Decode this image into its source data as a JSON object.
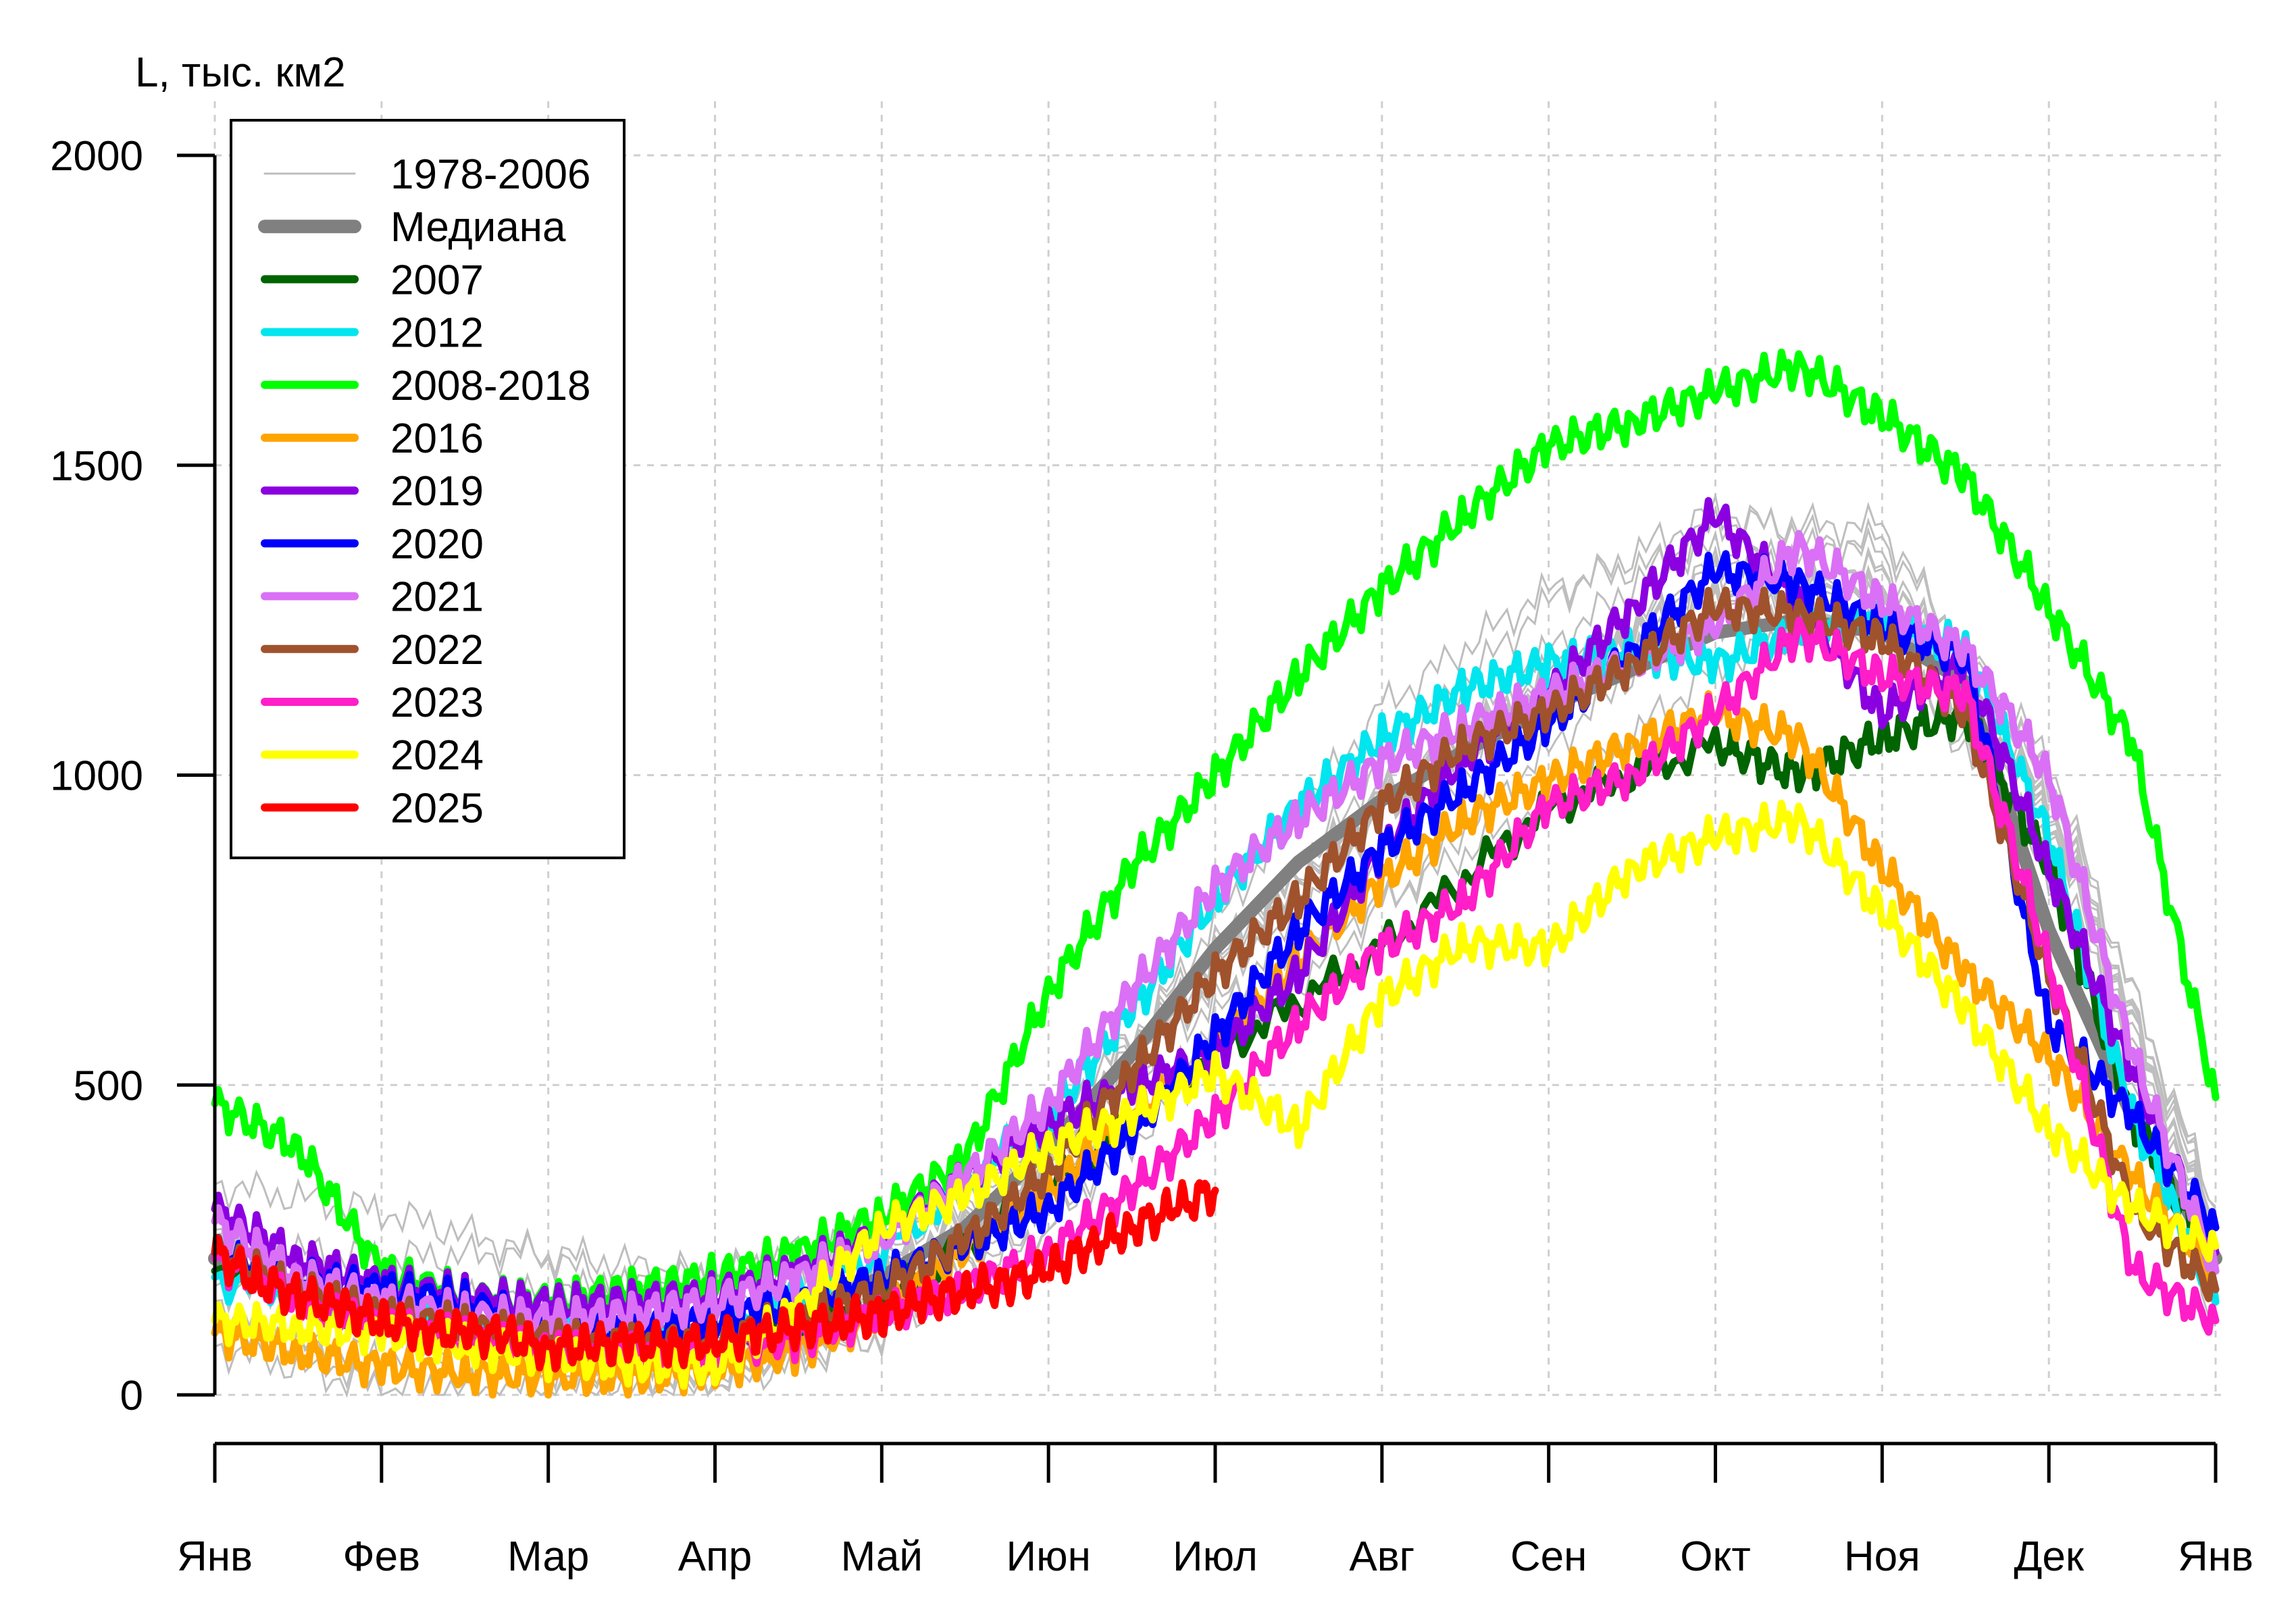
{
  "chart_data": {
    "type": "line",
    "ylabel": "L, тыс. км2",
    "ylim": [
      0,
      2000
    ],
    "y_ticks": [
      0,
      500,
      1000,
      1500,
      2000
    ],
    "x_ticks": [
      "Янв",
      "Фев",
      "Мар",
      "Апр",
      "Май",
      "Июн",
      "Июл",
      "Авг",
      "Сен",
      "Окт",
      "Ноя",
      "Дек",
      "Янв"
    ],
    "x_unit": "month",
    "grid": true,
    "legend_position": "top-left",
    "series": [
      {
        "name": "1978-2006",
        "color": "#bebebe",
        "style": "thin",
        "x": [
          0,
          1,
          2,
          3,
          4,
          5,
          6,
          7,
          8,
          9,
          10,
          11,
          12
        ],
        "values": [
          230,
          130,
          90,
          80,
          180,
          380,
          680,
          950,
          1150,
          1300,
          1300,
          950,
          250
        ]
      },
      {
        "name": "Медиана",
        "color": "#808080",
        "style": "median",
        "x": [
          0,
          0.5,
          1,
          1.5,
          2,
          2.5,
          3,
          3.5,
          4,
          4.5,
          5,
          5.5,
          6,
          6.5,
          7,
          7.5,
          8,
          8.5,
          9,
          9.5,
          10,
          10.5,
          11,
          11.5,
          12
        ],
        "values": [
          220,
          170,
          140,
          120,
          105,
          100,
          105,
          130,
          190,
          270,
          400,
          550,
          720,
          860,
          960,
          1040,
          1110,
          1170,
          1230,
          1250,
          1230,
          1150,
          750,
          450,
          220
        ]
      },
      {
        "name": "2007",
        "color": "#006400",
        "style": "thick",
        "x": [
          0,
          1,
          2,
          3,
          4,
          5,
          6,
          7,
          8,
          9,
          9.5,
          10,
          10.5,
          11,
          11.5,
          12
        ],
        "values": [
          200,
          120,
          90,
          80,
          150,
          330,
          550,
          720,
          950,
          1050,
          1000,
          1060,
          1100,
          850,
          450,
          200
        ]
      },
      {
        "name": "2012",
        "color": "#00e5ee",
        "style": "thick",
        "x": [
          0,
          1,
          2,
          3,
          4,
          5,
          5.5,
          6,
          6.5,
          7,
          7.5,
          8,
          8.5,
          9,
          9.5,
          10,
          10.5,
          11,
          11.5,
          12
        ],
        "values": [
          190,
          130,
          110,
          100,
          230,
          450,
          620,
          800,
          950,
          1060,
          1140,
          1180,
          1200,
          1180,
          1230,
          1250,
          1200,
          900,
          450,
          150
        ]
      },
      {
        "name": "2008-2018",
        "color": "#00ff00",
        "style": "thick",
        "x": [
          0,
          0.5,
          1,
          1.5,
          2,
          2.5,
          3,
          3.5,
          4,
          4.5,
          5,
          5.5,
          6,
          6.5,
          7,
          7.5,
          8,
          8.5,
          9,
          9.5,
          10,
          10.5,
          11,
          11.5,
          12
        ],
        "values": [
          470,
          400,
          200,
          160,
          150,
          170,
          190,
          230,
          290,
          380,
          650,
          850,
          1000,
          1160,
          1300,
          1420,
          1530,
          1570,
          1620,
          1660,
          1580,
          1480,
          1270,
          1050,
          480
        ]
      },
      {
        "name": "2016",
        "color": "#ffa500",
        "style": "thick",
        "x": [
          0,
          0.5,
          1,
          1.5,
          2,
          2.5,
          3,
          3.5,
          4,
          4.5,
          5,
          5.5,
          6,
          6.5,
          7,
          7.5,
          8,
          8.5,
          9,
          9.5,
          10,
          10.5,
          11,
          11.5,
          12
        ],
        "values": [
          100,
          70,
          45,
          35,
          30,
          30,
          40,
          70,
          130,
          230,
          330,
          450,
          560,
          700,
          830,
          930,
          990,
          1050,
          1100,
          1060,
          850,
          680,
          550,
          350,
          200
        ]
      },
      {
        "name": "2019",
        "color": "#8b00e0",
        "style": "thick",
        "x": [
          0,
          0.5,
          1,
          1.5,
          2,
          2.5,
          3,
          3.5,
          4,
          4.5,
          5,
          5.5,
          6,
          6.5,
          7,
          7.5,
          8,
          8.5,
          9,
          9.5,
          10,
          10.5,
          11,
          11.5,
          12
        ],
        "values": [
          300,
          220,
          180,
          160,
          145,
          150,
          160,
          200,
          260,
          350,
          440,
          500,
          550,
          680,
          880,
          1030,
          1130,
          1270,
          1420,
          1280,
          1100,
          1180,
          850,
          520,
          230
        ]
      },
      {
        "name": "2020",
        "color": "#0000ff",
        "style": "thick",
        "x": [
          0,
          0.5,
          1,
          1.5,
          2,
          2.5,
          3,
          3.5,
          4,
          4.5,
          5,
          5.5,
          6,
          6.5,
          7,
          7.5,
          8,
          8.5,
          9,
          9.5,
          10,
          10.5,
          11,
          11.5,
          12
        ],
        "values": [
          230,
          190,
          170,
          150,
          110,
          100,
          120,
          150,
          190,
          240,
          300,
          420,
          580,
          750,
          880,
          980,
          1080,
          1200,
          1330,
          1310,
          1240,
          1190,
          600,
          450,
          270
        ]
      },
      {
        "name": "2021",
        "color": "#da70f5",
        "style": "thick",
        "x": [
          0,
          0.5,
          1,
          1.5,
          2,
          2.5,
          3,
          3.5,
          4,
          4.5,
          5,
          5.5,
          6,
          6.5,
          7,
          7.5,
          8,
          8.5,
          9,
          9.5,
          10,
          10.5,
          11,
          11.5,
          12
        ],
        "values": [
          280,
          190,
          150,
          130,
          120,
          130,
          150,
          190,
          250,
          350,
          470,
          650,
          820,
          930,
          1020,
          1080,
          1130,
          1180,
          1240,
          1370,
          1280,
          1200,
          1000,
          550,
          200
        ]
      },
      {
        "name": "2022",
        "color": "#a0522d",
        "style": "thick",
        "x": [
          0,
          0.5,
          1,
          1.5,
          2,
          2.5,
          3,
          3.5,
          4,
          4.5,
          5,
          5.5,
          6,
          6.5,
          7,
          7.5,
          8,
          8.5,
          9,
          9.5,
          10,
          10.5,
          11,
          11.5,
          12
        ],
        "values": [
          230,
          170,
          130,
          110,
          90,
          80,
          90,
          120,
          170,
          250,
          360,
          520,
          680,
          800,
          950,
          1050,
          1100,
          1180,
          1270,
          1260,
          1220,
          1100,
          680,
          300,
          170
        ]
      },
      {
        "name": "2023",
        "color": "#ff1ec8",
        "style": "thick",
        "x": [
          0,
          0.5,
          1,
          1.5,
          2,
          2.5,
          3,
          3.5,
          4,
          4.5,
          5,
          5.5,
          6,
          6.5,
          7,
          7.5,
          8,
          8.5,
          9,
          9.5,
          10,
          10.5,
          11,
          11.5,
          12
        ],
        "values": [
          220,
          150,
          110,
          90,
          70,
          65,
          70,
          90,
          130,
          170,
          230,
          330,
          450,
          600,
          720,
          800,
          950,
          1000,
          1100,
          1230,
          1160,
          1130,
          700,
          200,
          120
        ]
      },
      {
        "name": "2024",
        "color": "#ffff00",
        "style": "thick",
        "x": [
          0,
          0.5,
          1,
          1.5,
          2,
          2.5,
          3,
          3.5,
          4,
          4.5,
          5,
          5.5,
          6,
          6.5,
          7,
          7.5,
          8,
          8.5,
          9,
          9.5,
          10,
          10.5,
          11,
          11.5,
          12
        ],
        "values": [
          120,
          110,
          100,
          80,
          60,
          50,
          45,
          140,
          270,
          320,
          400,
          450,
          520,
          430,
          640,
          730,
          720,
          850,
          900,
          930,
          780,
          620,
          430,
          300,
          240
        ]
      },
      {
        "name": "2025",
        "color": "#ff0000",
        "style": "thick",
        "x": [
          0,
          0.25,
          0.5,
          0.75,
          1,
          1.25,
          1.5,
          1.75,
          2,
          2.25,
          2.5,
          2.75,
          3,
          3.25,
          3.5,
          3.75,
          4,
          4.25,
          4.5,
          4.75,
          5,
          5.25,
          5.5,
          5.75,
          6
        ],
        "values": [
          230,
          185,
          160,
          140,
          120,
          105,
          100,
          95,
          75,
          80,
          85,
          80,
          90,
          95,
          110,
          120,
          130,
          150,
          170,
          180,
          200,
          240,
          270,
          300,
          330
        ]
      }
    ]
  }
}
